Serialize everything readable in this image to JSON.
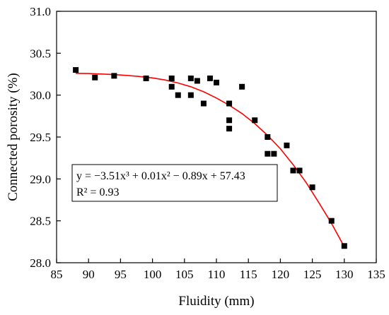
{
  "chart_data": {
    "type": "scatter",
    "xlabel": "Fluidity (mm)",
    "ylabel": "Connected porosity (%)",
    "xlim": [
      85,
      135
    ],
    "ylim": [
      28.0,
      31.0
    ],
    "xticks": [
      "85",
      "90",
      "95",
      "100",
      "105",
      "110",
      "115",
      "120",
      "125",
      "130",
      "135"
    ],
    "yticks": [
      "28.0",
      "28.5",
      "29.0",
      "29.5",
      "30.0",
      "30.5",
      "31.0"
    ],
    "grid": false,
    "marker_color": "#000000",
    "fit_color": "#ff0000",
    "points": [
      {
        "x": 88,
        "y": 30.3
      },
      {
        "x": 91,
        "y": 30.21
      },
      {
        "x": 94,
        "y": 30.23
      },
      {
        "x": 99,
        "y": 30.2
      },
      {
        "x": 103,
        "y": 30.2
      },
      {
        "x": 103,
        "y": 30.1
      },
      {
        "x": 104,
        "y": 30.0
      },
      {
        "x": 106,
        "y": 30.2
      },
      {
        "x": 106,
        "y": 30.0
      },
      {
        "x": 107,
        "y": 30.17
      },
      {
        "x": 108,
        "y": 29.9
      },
      {
        "x": 109,
        "y": 30.2
      },
      {
        "x": 110,
        "y": 30.15
      },
      {
        "x": 112,
        "y": 29.9
      },
      {
        "x": 112,
        "y": 29.7
      },
      {
        "x": 112,
        "y": 29.6
      },
      {
        "x": 114,
        "y": 30.1
      },
      {
        "x": 116,
        "y": 29.7
      },
      {
        "x": 118,
        "y": 29.5
      },
      {
        "x": 118,
        "y": 29.3
      },
      {
        "x": 119,
        "y": 29.3
      },
      {
        "x": 121,
        "y": 29.4
      },
      {
        "x": 122,
        "y": 29.1
      },
      {
        "x": 123,
        "y": 29.1
      },
      {
        "x": 125,
        "y": 28.9
      },
      {
        "x": 128,
        "y": 28.5
      },
      {
        "x": 130,
        "y": 28.2
      }
    ],
    "fit_line": {
      "x": [
        88,
        90,
        92,
        94,
        96,
        98,
        100,
        102,
        104,
        106,
        108,
        110,
        112,
        114,
        116,
        118,
        120,
        122,
        124,
        126,
        128,
        130
      ],
      "y": [
        30.26,
        30.258,
        30.252,
        30.245,
        30.235,
        30.222,
        30.205,
        30.18,
        30.145,
        30.1,
        30.04,
        29.965,
        29.88,
        29.78,
        29.66,
        29.52,
        29.36,
        29.17,
        28.96,
        28.72,
        28.47,
        28.19
      ]
    },
    "annotation": {
      "equation": "y = −3.51x³ + 0.01x² − 0.89x + 57.43",
      "r2": "R² = 0.93"
    }
  }
}
